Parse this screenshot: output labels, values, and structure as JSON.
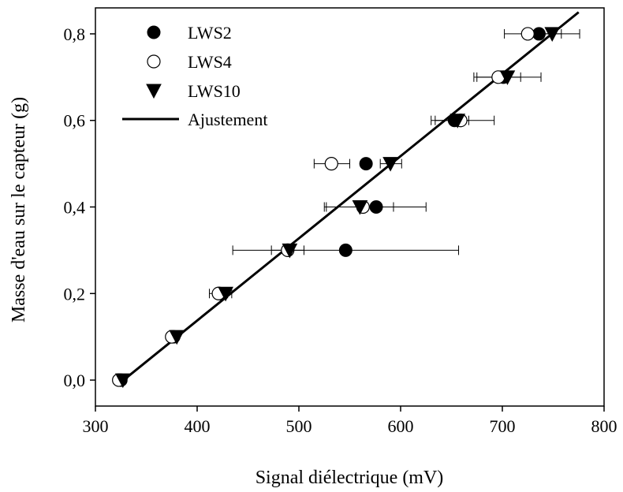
{
  "chart_data": {
    "type": "scatter",
    "xlabel": "Signal diélectrique (mV)",
    "ylabel": "Masse d'eau sur le capteur (g)",
    "xlim": [
      300,
      800
    ],
    "ylim": [
      -0.06,
      0.86
    ],
    "x_ticks": [
      300,
      400,
      500,
      600,
      700,
      800
    ],
    "x_tick_labels": [
      "300",
      "400",
      "500",
      "600",
      "700",
      "800"
    ],
    "y_ticks": [
      0.0,
      0.2,
      0.4,
      0.6,
      0.8
    ],
    "y_tick_labels": [
      "0,0",
      "0,2",
      "0,4",
      "0,6",
      "0,8"
    ],
    "grid": false,
    "legend_position": "top-left",
    "series": [
      {
        "name": "LWS2",
        "marker": "filled-circle",
        "color": "#000000",
        "points": [
          {
            "x": 325,
            "y": 0.0
          },
          {
            "x": 377,
            "y": 0.1
          },
          {
            "x": 422,
            "y": 0.2
          },
          {
            "x": 546,
            "y": 0.3,
            "xerr": [
              435,
              657
            ]
          },
          {
            "x": 576,
            "y": 0.4
          },
          {
            "x": 566,
            "y": 0.5
          },
          {
            "x": 653,
            "y": 0.6
          },
          {
            "x": 701,
            "y": 0.7
          },
          {
            "x": 736,
            "y": 0.8
          }
        ]
      },
      {
        "name": "LWS4",
        "marker": "open-circle",
        "color": "#000000",
        "points": [
          {
            "x": 323,
            "y": 0.0
          },
          {
            "x": 375,
            "y": 0.1
          },
          {
            "x": 421,
            "y": 0.2,
            "xerr": [
              412,
              430
            ]
          },
          {
            "x": 489,
            "y": 0.3,
            "xerr": [
              473,
              505
            ]
          },
          {
            "x": 563,
            "y": 0.4,
            "xerr": [
              525,
              625
            ]
          },
          {
            "x": 532,
            "y": 0.5,
            "xerr": [
              515,
              550
            ]
          },
          {
            "x": 659,
            "y": 0.6,
            "xerr": [
              634,
              692
            ]
          },
          {
            "x": 696,
            "y": 0.7,
            "xerr": [
              672,
              718
            ]
          },
          {
            "x": 725,
            "y": 0.8,
            "xerr": [
              702,
              758
            ]
          }
        ]
      },
      {
        "name": "LWS10",
        "marker": "down-triangle",
        "color": "#000000",
        "points": [
          {
            "x": 327,
            "y": 0.0
          },
          {
            "x": 380,
            "y": 0.1
          },
          {
            "x": 428,
            "y": 0.2,
            "xerr": [
              419,
              434
            ]
          },
          {
            "x": 491,
            "y": 0.3
          },
          {
            "x": 560,
            "y": 0.4,
            "xerr": [
              527,
              593
            ]
          },
          {
            "x": 590,
            "y": 0.5,
            "xerr": [
              580,
              601
            ]
          },
          {
            "x": 656,
            "y": 0.6,
            "xerr": [
              630,
              667
            ]
          },
          {
            "x": 705,
            "y": 0.7,
            "xerr": [
              675,
              738
            ]
          },
          {
            "x": 749,
            "y": 0.8,
            "xerr": [
              724,
              776
            ]
          }
        ]
      }
    ],
    "fit": {
      "name": "Ajustement",
      "type": "line",
      "color": "#000000",
      "x": [
        325,
        775
      ],
      "y": [
        -0.005,
        0.85
      ]
    }
  }
}
